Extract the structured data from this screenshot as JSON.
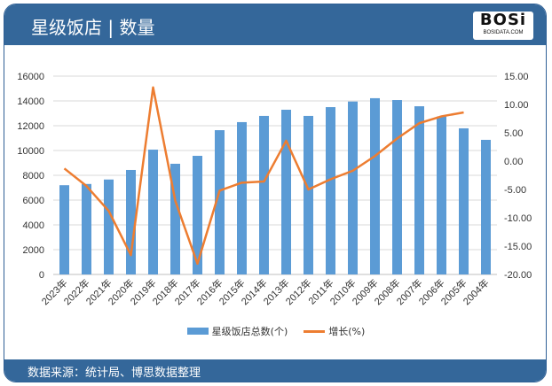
{
  "header": {
    "title": "星级饭店 | 数量",
    "logo_text": "BOSi",
    "logo_sub": "BOSIDATA.COM"
  },
  "footer": {
    "source": "数据来源：统计局、博思数据整理"
  },
  "colors": {
    "header": "#34679a",
    "bar": "#5b9bd5",
    "line": "#ed7d31"
  },
  "chart_data": {
    "type": "bar+line",
    "categories": [
      "2023年",
      "2022年",
      "2021年",
      "2020年",
      "2019年",
      "2018年",
      "2017年",
      "2016年",
      "2015年",
      "2014年",
      "2013年",
      "2012年",
      "2011年",
      "2010年",
      "2009年",
      "2008年",
      "2007年",
      "2006年",
      "2005年",
      "2004年"
    ],
    "series": [
      {
        "name": "星级饭店总数(个)",
        "type": "bar",
        "axis": "left",
        "values": [
          7200,
          7300,
          7660,
          8430,
          10070,
          8930,
          9570,
          11640,
          12290,
          12790,
          13290,
          12790,
          13500,
          13950,
          14220,
          14070,
          13570,
          12740,
          11790,
          10860
        ]
      },
      {
        "name": "增长(%)",
        "type": "line",
        "axis": "right",
        "values": [
          -1.3,
          -4.4,
          -8.8,
          -16.6,
          13.0,
          -7.0,
          -18.1,
          -5.2,
          -3.8,
          -3.6,
          3.6,
          -5.0,
          -3.2,
          -1.7,
          0.9,
          4.0,
          6.7,
          7.9,
          8.6,
          null
        ]
      }
    ],
    "left_axis": {
      "ylim": [
        0,
        16000
      ],
      "ticks": [
        "0",
        "2000",
        "4000",
        "6000",
        "8000",
        "10000",
        "12000",
        "14000",
        "16000"
      ]
    },
    "right_axis": {
      "ylim": [
        -20,
        15
      ],
      "ticks": [
        "-20.00",
        "-15.00",
        "-10.00",
        "-5.00",
        "0.00",
        "5.00",
        "10.00",
        "15.00"
      ]
    },
    "grid": true,
    "legend": "bottom"
  }
}
